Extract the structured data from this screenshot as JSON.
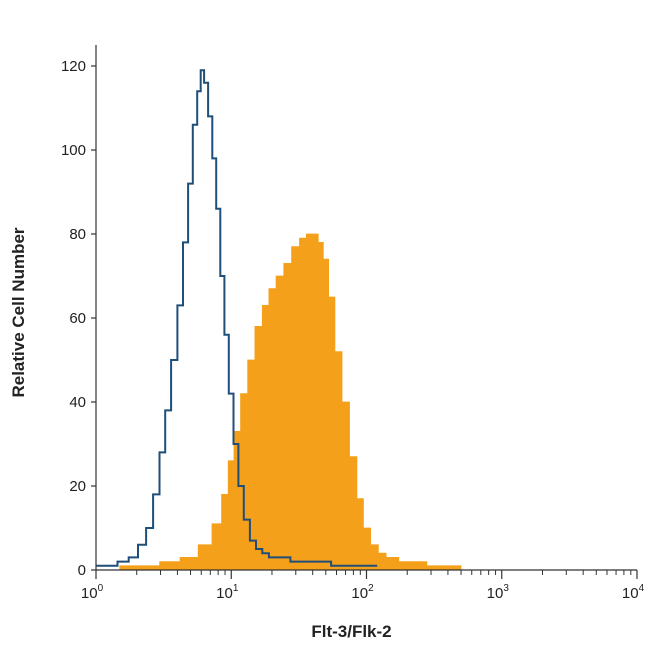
{
  "chart_data": {
    "type": "area",
    "xlabel": "Flt-3/Flk-2",
    "ylabel": "Relative Cell Number",
    "xscale": "log",
    "xlim": [
      1,
      10000
    ],
    "ylim": [
      0,
      125
    ],
    "x_ticks": [
      {
        "value": 1,
        "base": "10",
        "exp": "0"
      },
      {
        "value": 10,
        "base": "10",
        "exp": "1"
      },
      {
        "value": 100,
        "base": "10",
        "exp": "2"
      },
      {
        "value": 1000,
        "base": "10",
        "exp": "3"
      },
      {
        "value": 10000,
        "base": "10",
        "exp": "4"
      }
    ],
    "y_ticks": [
      0,
      20,
      40,
      60,
      80,
      100,
      120
    ],
    "grid": false,
    "series": [
      {
        "style": "outline",
        "color": "#1f4e79",
        "points": [
          [
            1.0,
            1
          ],
          [
            1.3,
            1
          ],
          [
            1.6,
            2
          ],
          [
            1.9,
            3
          ],
          [
            2.2,
            6
          ],
          [
            2.5,
            10
          ],
          [
            2.8,
            18
          ],
          [
            3.1,
            28
          ],
          [
            3.4,
            38
          ],
          [
            3.8,
            50
          ],
          [
            4.2,
            63
          ],
          [
            4.6,
            78
          ],
          [
            5.0,
            92
          ],
          [
            5.4,
            106
          ],
          [
            5.8,
            114
          ],
          [
            6.1,
            119
          ],
          [
            6.5,
            116
          ],
          [
            7.0,
            108
          ],
          [
            7.5,
            98
          ],
          [
            8.0,
            86
          ],
          [
            8.6,
            70
          ],
          [
            9.2,
            56
          ],
          [
            10.0,
            42
          ],
          [
            10.8,
            30
          ],
          [
            11.8,
            20
          ],
          [
            13.0,
            12
          ],
          [
            14.5,
            7
          ],
          [
            16.0,
            5
          ],
          [
            18.0,
            4
          ],
          [
            20.0,
            3
          ],
          [
            25.0,
            3
          ],
          [
            30.0,
            2
          ],
          [
            40.0,
            2
          ],
          [
            50.0,
            2
          ],
          [
            60.0,
            1
          ],
          [
            80.0,
            1
          ],
          [
            100.0,
            1
          ],
          [
            120.0,
            1
          ]
        ]
      },
      {
        "style": "filled",
        "color": "#f5a01a",
        "points": [
          [
            1.5,
            1
          ],
          [
            2.5,
            1
          ],
          [
            3.5,
            2
          ],
          [
            5.0,
            3
          ],
          [
            6.5,
            6
          ],
          [
            8.0,
            11
          ],
          [
            9.0,
            18
          ],
          [
            10.0,
            26
          ],
          [
            11.0,
            33
          ],
          [
            12.5,
            42
          ],
          [
            14.0,
            50
          ],
          [
            16.0,
            58
          ],
          [
            18.0,
            63
          ],
          [
            20.0,
            67
          ],
          [
            23.0,
            70
          ],
          [
            26.0,
            73
          ],
          [
            30.0,
            77
          ],
          [
            34.0,
            79
          ],
          [
            38.0,
            80
          ],
          [
            42.0,
            80
          ],
          [
            46.0,
            78
          ],
          [
            50.0,
            74
          ],
          [
            55.0,
            65
          ],
          [
            62.0,
            52
          ],
          [
            70.0,
            40
          ],
          [
            80.0,
            27
          ],
          [
            90.0,
            17
          ],
          [
            100.0,
            10
          ],
          [
            115.0,
            6
          ],
          [
            130.0,
            4
          ],
          [
            150.0,
            3
          ],
          [
            200.0,
            2
          ],
          [
            260.0,
            2
          ],
          [
            300.0,
            1
          ],
          [
            400.0,
            1
          ],
          [
            500.0,
            1
          ]
        ]
      }
    ]
  }
}
